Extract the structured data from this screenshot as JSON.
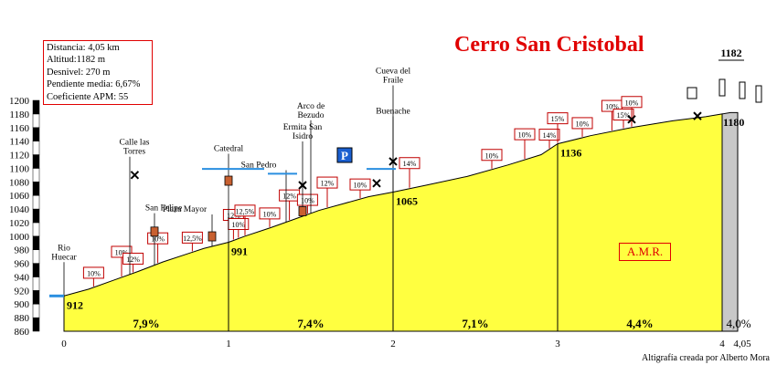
{
  "title": "Cerro San Cristobal",
  "credit": "Altigrafía creada por Alberto Mora",
  "stats": [
    "Distancia: 4,05 km",
    "Altitud:1182 m",
    "Desnivel: 270 m",
    "Pendiente media: 6,67%",
    "Coeficiente APM: 55"
  ],
  "amr_label": "A.M.R.",
  "colors": {
    "fill": "#ffff40",
    "summit_fill": "#c8c8c8",
    "accent": "#e00000",
    "arrow": "#2a8fe0"
  },
  "chart_data": {
    "type": "area",
    "title": "Cerro San Cristobal",
    "xlabel": "",
    "ylabel": "",
    "xlim": [
      0,
      4.2
    ],
    "ylim": [
      860,
      1200
    ],
    "x_ticks": [
      "0",
      "1",
      "2",
      "3",
      "4",
      "4,05"
    ],
    "x_tick_values": [
      0,
      1,
      2,
      3,
      4,
      4.05
    ],
    "y_ticks": [
      860,
      880,
      900,
      920,
      940,
      960,
      980,
      1000,
      1020,
      1040,
      1060,
      1080,
      1100,
      1120,
      1140,
      1160,
      1180,
      1200
    ],
    "profile": [
      {
        "x": 0,
        "y": 912
      },
      {
        "x": 0.15,
        "y": 922
      },
      {
        "x": 0.3,
        "y": 935
      },
      {
        "x": 0.45,
        "y": 948
      },
      {
        "x": 0.6,
        "y": 962
      },
      {
        "x": 0.75,
        "y": 974
      },
      {
        "x": 0.85,
        "y": 982
      },
      {
        "x": 1.0,
        "y": 991
      },
      {
        "x": 1.1,
        "y": 1000
      },
      {
        "x": 1.25,
        "y": 1012
      },
      {
        "x": 1.4,
        "y": 1025
      },
      {
        "x": 1.55,
        "y": 1038
      },
      {
        "x": 1.7,
        "y": 1048
      },
      {
        "x": 1.85,
        "y": 1058
      },
      {
        "x": 2.0,
        "y": 1065
      },
      {
        "x": 2.2,
        "y": 1075
      },
      {
        "x": 2.45,
        "y": 1088
      },
      {
        "x": 2.7,
        "y": 1105
      },
      {
        "x": 2.9,
        "y": 1120
      },
      {
        "x": 3.0,
        "y": 1136
      },
      {
        "x": 3.2,
        "y": 1148
      },
      {
        "x": 3.45,
        "y": 1160
      },
      {
        "x": 3.7,
        "y": 1170
      },
      {
        "x": 3.9,
        "y": 1176
      },
      {
        "x": 4.0,
        "y": 1180
      },
      {
        "x": 4.05,
        "y": 1182
      }
    ],
    "segment_slopes": [
      {
        "from": 0,
        "to": 1,
        "label": "7,9%"
      },
      {
        "from": 1,
        "to": 2,
        "label": "7,4%"
      },
      {
        "from": 2,
        "to": 3,
        "label": "7,1%"
      },
      {
        "from": 3,
        "to": 4,
        "label": "4,4%"
      },
      {
        "from": 4,
        "to": 4.05,
        "label": "4,0%"
      }
    ],
    "altitude_labels": [
      {
        "x": 0,
        "y": 912,
        "label": "912"
      },
      {
        "x": 1,
        "y": 991,
        "label": "991"
      },
      {
        "x": 2,
        "y": 1065,
        "label": "1065"
      },
      {
        "x": 3,
        "y": 1136,
        "label": "1136"
      },
      {
        "x": 4,
        "y": 1180,
        "label": "1180"
      },
      {
        "x": 4.05,
        "y": 1182,
        "label": "1182"
      }
    ],
    "local_slopes": [
      {
        "x": 0.18,
        "label": "10%"
      },
      {
        "x": 0.35,
        "label": "10%"
      },
      {
        "x": 0.42,
        "label": "12%"
      },
      {
        "x": 0.57,
        "label": "10%"
      },
      {
        "x": 0.78,
        "label": "12,5%"
      },
      {
        "x": 1.03,
        "label": "12%"
      },
      {
        "x": 1.06,
        "label": "10%"
      },
      {
        "x": 1.1,
        "label": "12,5%"
      },
      {
        "x": 1.25,
        "label": "10%"
      },
      {
        "x": 1.37,
        "label": "12%"
      },
      {
        "x": 1.48,
        "label": "10%"
      },
      {
        "x": 1.6,
        "label": "12%"
      },
      {
        "x": 1.8,
        "label": "10%"
      },
      {
        "x": 2.1,
        "label": "14%"
      },
      {
        "x": 2.6,
        "label": "10%"
      },
      {
        "x": 2.8,
        "label": "10%"
      },
      {
        "x": 2.95,
        "label": "14%"
      },
      {
        "x": 3.0,
        "label": "15%"
      },
      {
        "x": 3.15,
        "label": "10%"
      },
      {
        "x": 3.33,
        "label": "10%"
      },
      {
        "x": 3.4,
        "label": "15%"
      },
      {
        "x": 3.45,
        "label": "10%"
      }
    ],
    "landmarks": [
      {
        "x": 0,
        "label": "Rio Huecar"
      },
      {
        "x": 0.4,
        "label": "Calle las Torres"
      },
      {
        "x": 0.55,
        "label": "San Felipe"
      },
      {
        "x": 0.9,
        "label": "Plaza Mayor"
      },
      {
        "x": 1.0,
        "label": "Catedral"
      },
      {
        "x": 1.35,
        "label": "San Pedro"
      },
      {
        "x": 1.5,
        "label": "Arco de Bezudo"
      },
      {
        "x": 1.45,
        "label": "Ermita San Isidro"
      },
      {
        "x": 2.0,
        "label": "Cueva del Fraile"
      },
      {
        "x": 2.0,
        "label": "Buenache"
      }
    ]
  }
}
